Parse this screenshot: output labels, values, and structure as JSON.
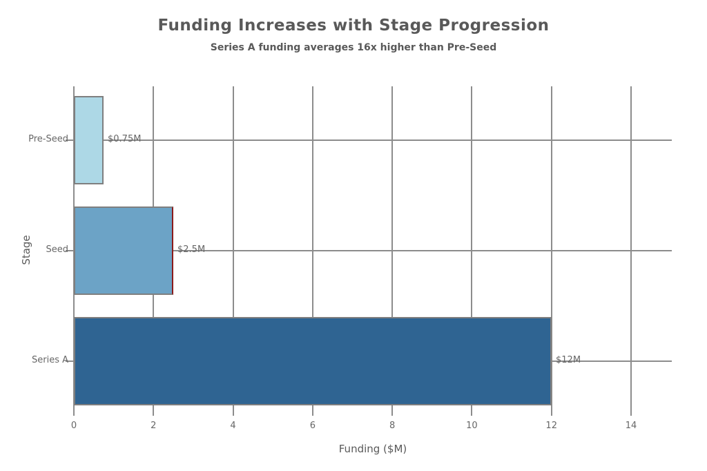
{
  "chart_data": {
    "type": "bar",
    "orientation": "horizontal",
    "title": "Funding Increases with Stage Progression",
    "subtitle": "Series A funding averages 16x higher than Pre-Seed",
    "xlabel": "Funding ($M)",
    "ylabel": "Stage",
    "categories": [
      "Pre-Seed",
      "Seed",
      "Series A"
    ],
    "values": [
      0.75,
      2.5,
      12
    ],
    "value_labels": [
      "$0.75M",
      "$2.5M",
      "$12M"
    ],
    "x_ticks": [
      "0",
      "2",
      "4",
      "6",
      "8",
      "10",
      "12",
      "14"
    ],
    "x_tick_values": [
      0,
      2,
      4,
      6,
      8,
      10,
      12,
      14
    ],
    "xlim": [
      0,
      15
    ],
    "grid": true,
    "legend": false,
    "colors": {
      "bar_fills": [
        "#add8e6",
        "#6ca3c6",
        "#2f6492"
      ],
      "bar_edge": "#7f7f7f",
      "highlight_edge": "#8b1a1a",
      "grid": "#8c8c8c",
      "title_text": "#595959",
      "tick_text": "#666666"
    },
    "highlight": {
      "category": "Seed",
      "side": "right"
    }
  }
}
